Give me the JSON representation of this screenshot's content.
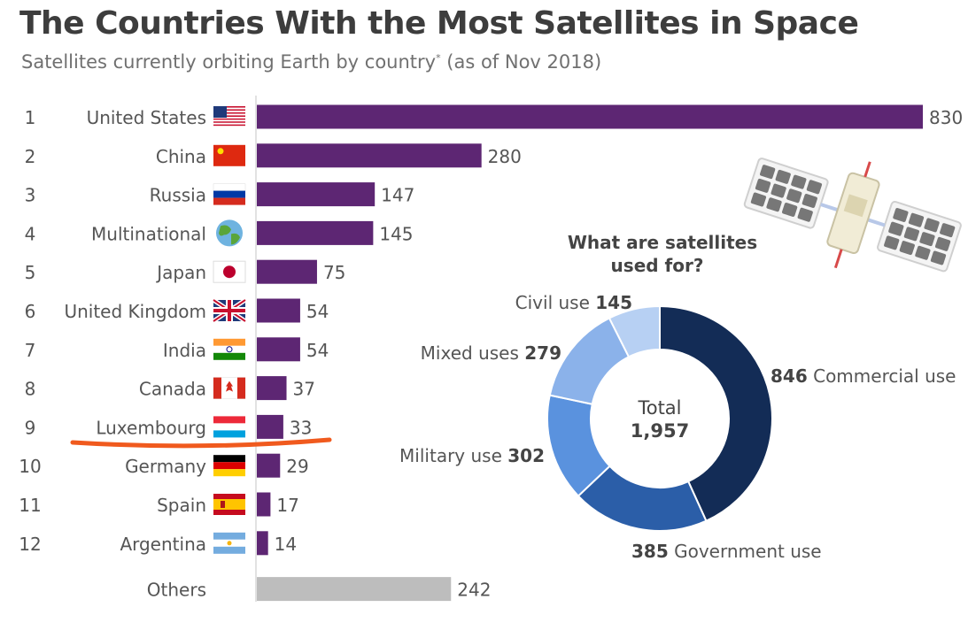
{
  "header": {
    "title": "The Countries With the Most Satellites in Space",
    "subtitle_main": "Satellites currently orbiting Earth by country",
    "subtitle_mark": "*",
    "subtitle_date": " (as of Nov 2018)"
  },
  "chart_data": [
    {
      "type": "bar",
      "orientation": "horizontal",
      "title": "The Countries With the Most Satellites in Space",
      "subtitle": "Satellites currently orbiting Earth by country* (as of Nov 2018)",
      "bar_color": "#5d2673",
      "others_color": "#bdbdbd",
      "xlim": [
        0,
        830
      ],
      "grid": false,
      "categories": [
        {
          "rank": "1",
          "name": "United States",
          "flag": "flag-us-icon",
          "value": 830
        },
        {
          "rank": "2",
          "name": "China",
          "flag": "flag-china-icon",
          "value": 280
        },
        {
          "rank": "3",
          "name": "Russia",
          "flag": "flag-russia-icon",
          "value": 147
        },
        {
          "rank": "4",
          "name": "Multinational",
          "flag": "globe-icon",
          "value": 145
        },
        {
          "rank": "5",
          "name": "Japan",
          "flag": "flag-japan-icon",
          "value": 75
        },
        {
          "rank": "6",
          "name": "United Kingdom",
          "flag": "flag-uk-icon",
          "value": 54
        },
        {
          "rank": "7",
          "name": "India",
          "flag": "flag-india-icon",
          "value": 54
        },
        {
          "rank": "8",
          "name": "Canada",
          "flag": "flag-canada-icon",
          "value": 37
        },
        {
          "rank": "9",
          "name": "Luxembourg",
          "flag": "flag-luxembourg-icon",
          "value": 33
        },
        {
          "rank": "10",
          "name": "Germany",
          "flag": "flag-germany-icon",
          "value": 29
        },
        {
          "rank": "11",
          "name": "Spain",
          "flag": "flag-spain-icon",
          "value": 17
        },
        {
          "rank": "12",
          "name": "Argentina",
          "flag": "flag-argentina-icon",
          "value": 14
        },
        {
          "rank": "",
          "name": "Others",
          "flag": "",
          "value": 242
        }
      ],
      "highlight": {
        "category": "Luxembourg",
        "underline_color": "#f05a1e"
      }
    },
    {
      "type": "pie",
      "style": "donut",
      "title_lines": [
        "What are satellites",
        "used for?"
      ],
      "center_label": "Total",
      "center_value": "1,957",
      "slices": [
        {
          "name": "Commercial use",
          "value": 846,
          "value_text": "846",
          "color": "#132c56"
        },
        {
          "name": "Government use",
          "value": 385,
          "value_text": "385",
          "color": "#2b5ea8"
        },
        {
          "name": "Military use",
          "value": 302,
          "value_text": "302",
          "color": "#5a92de"
        },
        {
          "name": "Mixed uses",
          "value": 279,
          "value_text": "279",
          "color": "#8bb2ea"
        },
        {
          "name": "Civil use",
          "value": 145,
          "value_text": "145",
          "color": "#b7d0f3"
        }
      ]
    }
  ],
  "decor": {
    "satellite": "satellite-icon"
  }
}
